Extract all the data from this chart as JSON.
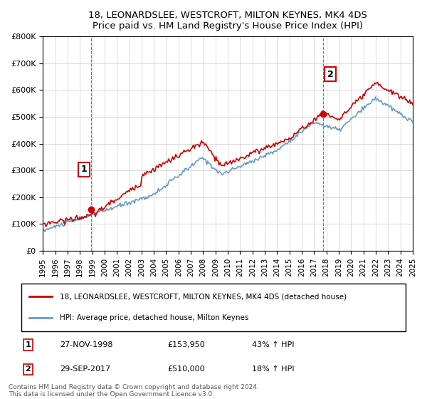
{
  "title": "18, LEONARDSLEE, WESTCROFT, MILTON KEYNES, MK4 4DS",
  "subtitle": "Price paid vs. HM Land Registry's House Price Index (HPI)",
  "legend_line1": "18, LEONARDSLEE, WESTCROFT, MILTON KEYNES, MK4 4DS (detached house)",
  "legend_line2": "HPI: Average price, detached house, Milton Keynes",
  "annotation1_label": "1",
  "annotation1_date": "27-NOV-1998",
  "annotation1_price": "£153,950",
  "annotation1_hpi": "43% ↑ HPI",
  "annotation2_label": "2",
  "annotation2_date": "29-SEP-2017",
  "annotation2_price": "£510,000",
  "annotation2_hpi": "18% ↑ HPI",
  "footer": "Contains HM Land Registry data © Crown copyright and database right 2024.\nThis data is licensed under the Open Government Licence v3.0.",
  "red_color": "#cc0000",
  "blue_color": "#6699cc",
  "dashed_color": "#cc0000",
  "annotation_box_color": "#cc0000",
  "ylim": [
    0,
    800000
  ],
  "yticks": [
    0,
    100000,
    200000,
    300000,
    400000,
    500000,
    600000,
    700000,
    800000
  ],
  "sale1_x": 1998.9,
  "sale1_y": 153950,
  "sale2_x": 2017.75,
  "sale2_y": 510000,
  "xmin": 1995,
  "xmax": 2025
}
